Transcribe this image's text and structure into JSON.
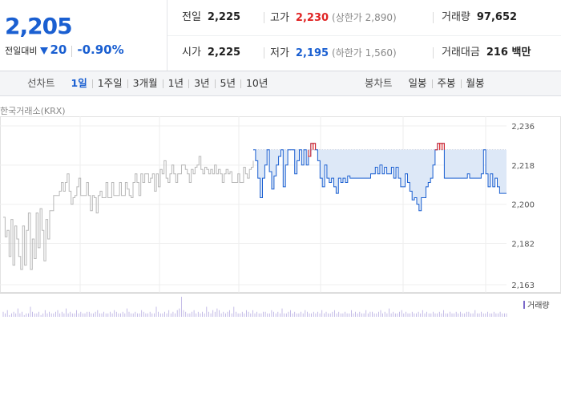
{
  "quote": {
    "price": "2,205",
    "change_label": "전일대비",
    "change": "20",
    "change_rate": "-0.90%",
    "prev_close_label": "전일",
    "prev_close": "2,225",
    "high_label": "고가",
    "high": "2,230",
    "upper_limit": "(상한가 2,890)",
    "volume_label": "거래량",
    "volume": "97,652",
    "open_label": "시가",
    "open": "2,225",
    "low_label": "저가",
    "low": "2,195",
    "lower_limit": "(하한가 1,560)",
    "amount_label": "거래대금",
    "amount": "216 백만"
  },
  "toolbar": {
    "line_label": "선차트",
    "line_periods": [
      "1일",
      "1주일",
      "3개월",
      "1년",
      "3년",
      "5년",
      "10년"
    ],
    "selected_period": "1일",
    "candle_label": "봉차트",
    "candle_periods": [
      "일봉",
      "주봉",
      "월봉"
    ]
  },
  "exchange": "한국거래소(KRX)",
  "colors": {
    "up": "#e02424",
    "down": "#1a5fd1",
    "prev_session": "#b8b8b8",
    "volume": "#7a68c9",
    "fill": "#dde8f7"
  },
  "chart_data": {
    "type": "line",
    "ylim": [
      2163,
      2236
    ],
    "y_ticks": [
      "2,236",
      "2,218",
      "2,200",
      "2,182",
      "2,163"
    ],
    "y_tick_values": [
      2236,
      2218,
      2200,
      2182,
      2163
    ],
    "reference_price": 2225,
    "series": [
      {
        "values": [
          2194,
          2185,
          2188,
          2176,
          2193,
          2172,
          2190,
          2184,
          2176,
          2170,
          2190,
          2172,
          2188,
          2196,
          2170,
          2184,
          2175,
          2196,
          2180,
          2198,
          2188,
          2174,
          2193,
          2184,
          2197,
          2197,
          2204,
          2204,
          2204,
          2206,
          2210,
          2206,
          2210,
          2214,
          2206,
          2200,
          2203,
          2204,
          2208,
          2212,
          2204,
          2204,
          2204,
          2210,
          2204,
          2197,
          2204,
          2203,
          2196,
          2204,
          2206,
          2203,
          2203,
          2210,
          2203,
          2203,
          2210,
          2204,
          2204,
          2204,
          2210,
          2204,
          2204,
          2210,
          2207,
          2204,
          2203,
          2210,
          2214,
          2210,
          2204,
          2214,
          2210,
          2214,
          2214,
          2210,
          2212,
          2214,
          2206,
          2214,
          2208,
          2216,
          2214,
          2220,
          2212,
          2210,
          2214,
          2218,
          2214,
          2210,
          2214,
          2214,
          2218,
          2218,
          2216,
          2214,
          2210,
          2216,
          2214,
          2217,
          2218,
          2222,
          2216,
          2214,
          2217,
          2216,
          2214,
          2216,
          2214,
          2218,
          2214,
          2216,
          2214,
          2210,
          2214,
          2216,
          2214,
          2215,
          2210,
          2210,
          2210,
          2214,
          2210,
          2210,
          2217,
          2214,
          2212,
          2216,
          2217,
          2220
        ]
      },
      {
        "values": [
          2225,
          2220,
          2212,
          2203,
          2212,
          2218,
          2225,
          2215,
          2207,
          2213,
          2218,
          2222,
          2225,
          2208,
          2218,
          2225,
          2225,
          2225,
          2214,
          2220,
          2225,
          2218,
          2225,
          2218,
          2222,
          2228,
          2228,
          2225,
          2220,
          2212,
          2208,
          2218,
          2212,
          2210,
          2212,
          2208,
          2205,
          2212,
          2210,
          2212,
          2210,
          2213,
          2212,
          2212,
          2212,
          2212,
          2212,
          2212,
          2212,
          2212,
          2212,
          2214,
          2214,
          2217,
          2214,
          2218,
          2214,
          2217,
          2214,
          2214,
          2217,
          2212,
          2217,
          2212,
          2208,
          2208,
          2214,
          2210,
          2206,
          2202,
          2203,
          2200,
          2197,
          2203,
          2203,
          2208,
          2210,
          2212,
          2218,
          2225,
          2228,
          2228,
          2228,
          2212,
          2212,
          2212,
          2212,
          2212,
          2212,
          2212,
          2212,
          2212,
          2212,
          2214,
          2212,
          2212,
          2212,
          2212,
          2212,
          2214,
          2225,
          2214,
          2208,
          2214,
          2208,
          2212,
          2208,
          2205,
          2205,
          2205,
          2205
        ]
      }
    ],
    "volume": [
      3,
      2,
      4,
      1,
      2,
      3,
      2,
      5,
      2,
      3,
      1,
      2,
      2,
      6,
      3,
      2,
      2,
      3,
      1,
      2,
      4,
      2,
      3,
      2,
      2,
      3,
      4,
      2,
      3,
      2,
      5,
      2,
      3,
      2,
      2,
      4,
      2,
      3,
      2,
      2,
      3,
      3,
      2,
      2,
      3,
      4,
      2,
      2,
      3,
      2,
      2,
      3,
      2,
      4,
      3,
      2,
      2,
      3,
      2,
      5,
      3,
      2,
      2,
      3,
      2,
      2,
      4,
      3,
      2,
      2,
      3,
      2,
      2,
      6,
      3,
      2,
      2,
      3,
      2,
      4,
      2,
      3,
      2,
      4,
      5,
      12,
      4,
      3,
      2,
      2,
      3,
      4,
      2,
      3,
      2,
      3,
      2,
      6,
      3,
      2,
      4,
      3,
      5,
      4,
      2,
      3,
      2,
      3,
      4,
      2,
      6,
      3,
      2,
      2,
      3,
      2,
      4,
      3,
      2,
      4,
      2,
      3,
      2,
      2,
      3,
      3,
      2,
      2,
      4,
      3,
      2,
      3,
      2,
      5,
      2,
      2,
      3,
      4,
      2,
      3,
      2,
      2,
      3,
      2,
      4,
      3,
      2,
      2,
      3,
      2,
      3,
      2,
      4,
      2,
      3,
      2,
      2,
      3,
      4,
      2,
      3,
      2,
      2,
      3,
      2,
      2,
      4,
      2,
      3,
      2,
      3,
      2,
      2,
      4,
      2,
      3,
      3,
      2,
      2,
      3,
      4,
      2,
      3,
      2,
      5,
      2,
      3,
      2,
      2,
      3,
      4,
      2,
      3,
      2,
      2,
      3,
      2,
      2,
      3,
      2,
      4,
      2,
      3,
      2,
      2,
      3,
      2,
      2,
      3,
      2,
      4,
      2,
      2,
      3,
      2,
      2,
      3,
      2,
      3,
      2,
      2,
      3,
      3,
      2,
      2,
      4,
      2,
      2,
      3,
      2,
      2,
      3,
      2,
      2,
      3,
      2,
      2,
      3,
      2,
      2,
      2
    ],
    "legend": [
      "거래량"
    ]
  }
}
